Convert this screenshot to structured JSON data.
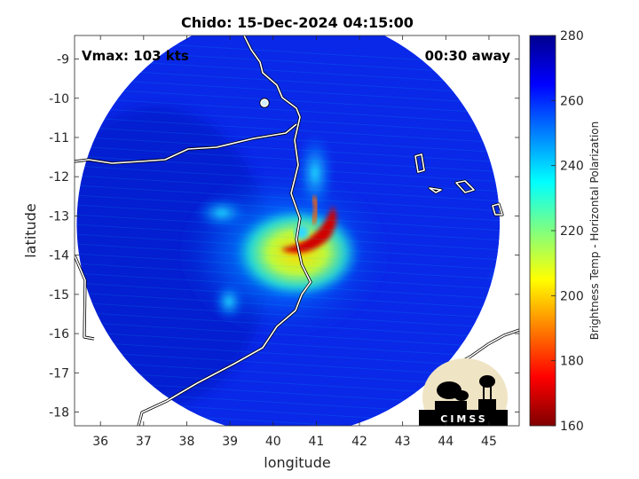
{
  "chart_data": {
    "type": "heatmap",
    "title": "Chido: 15-Dec-2024 04:15:00",
    "xlabel": "longitude",
    "ylabel": "latitude",
    "xlim": [
      35.4,
      45.7
    ],
    "ylim": [
      -18.35,
      -8.4
    ],
    "y_reversed": true,
    "xticks": [
      36,
      37,
      38,
      39,
      40,
      41,
      42,
      43,
      44,
      45
    ],
    "xtick_labels": [
      "36",
      "37",
      "38",
      "39",
      "40",
      "41",
      "42",
      "43",
      "44",
      "45"
    ],
    "yticks": [
      -9,
      -10,
      -11,
      -12,
      -13,
      -14,
      -15,
      -16,
      -17,
      -18
    ],
    "ytick_labels": [
      "-9",
      "-10",
      "-11",
      "-12",
      "-13",
      "-14",
      "-15",
      "-16",
      "-17",
      "-18"
    ],
    "grid": false,
    "annotations": {
      "vmax": "Vmax: 103 kts",
      "time_away": "00:30 away"
    },
    "storm_center": [
      40.6,
      -13.8
    ],
    "swath_center": [
      40.35,
      -13.2
    ],
    "swath_radius_deg": 4.9,
    "colorbar": {
      "label": "Brightness Temp - Horizontal Polarization",
      "range": [
        160,
        280
      ],
      "ticks": [
        160,
        180,
        200,
        220,
        240,
        260,
        280
      ],
      "tick_labels": [
        "160",
        "180",
        "200",
        "220",
        "240",
        "260",
        "280"
      ],
      "colormap": "jet"
    },
    "field_features": [
      {
        "name": "warm background",
        "value": 270
      },
      {
        "name": "land mass",
        "value": 262
      },
      {
        "name": "outer rain band",
        "value": 238
      },
      {
        "name": "inner core ring",
        "value": 205
      },
      {
        "name": "eyewall",
        "value": 170
      },
      {
        "name": "eye",
        "value": 235
      }
    ],
    "colors": {
      "coastline": "#ffffff",
      "border": "#000000",
      "background": "#00008f"
    },
    "logo": "CIMSS"
  }
}
